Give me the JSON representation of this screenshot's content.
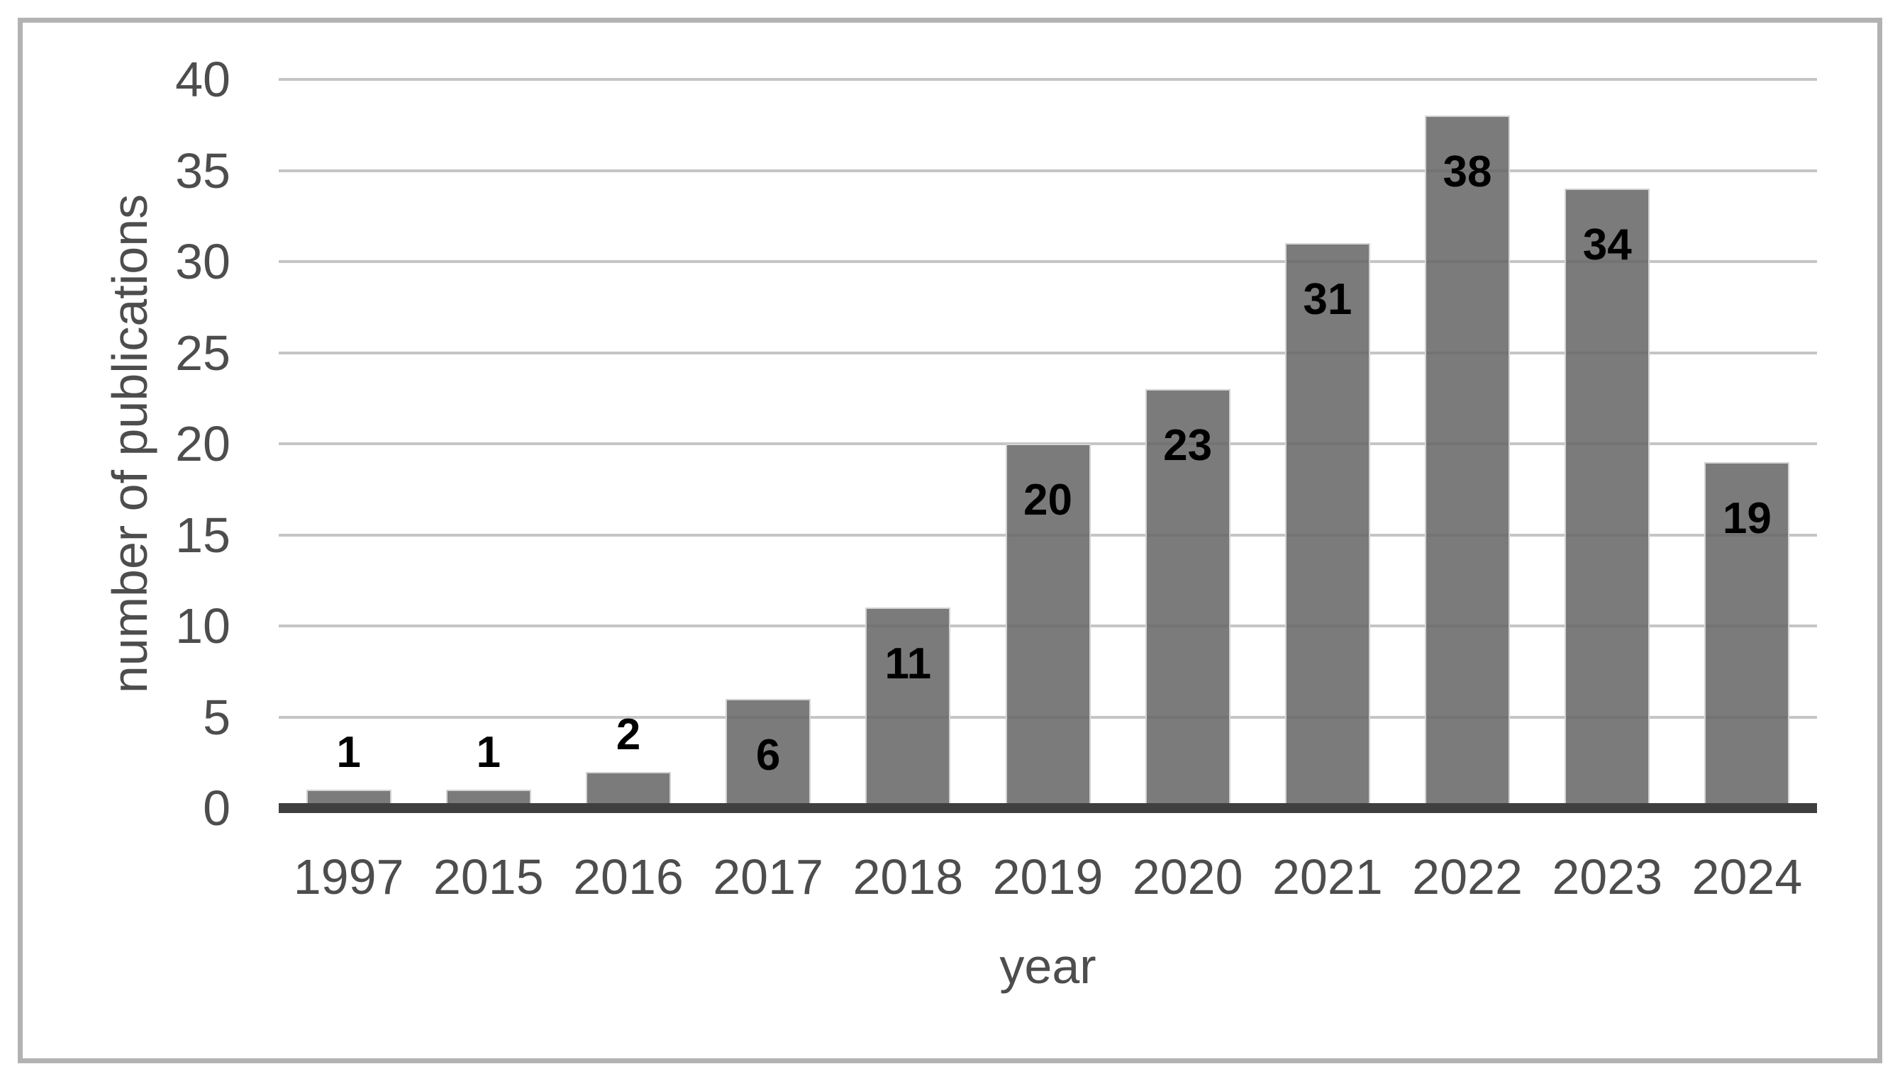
{
  "chart_data": {
    "type": "bar",
    "title": "",
    "xlabel": "year",
    "ylabel": "number of publications",
    "categories": [
      "1997",
      "2015",
      "2016",
      "2017",
      "2018",
      "2019",
      "2020",
      "2021",
      "2022",
      "2023",
      "2024"
    ],
    "values": [
      1,
      1,
      2,
      6,
      11,
      20,
      23,
      31,
      38,
      34,
      19
    ],
    "data_labels": [
      "1",
      "1",
      "2",
      "6",
      "11",
      "20",
      "23",
      "31",
      "38",
      "34",
      "19"
    ],
    "ylim": [
      0,
      40
    ],
    "yticks": [
      0,
      5,
      10,
      15,
      20,
      25,
      30,
      35,
      40
    ],
    "grid": "horizontal",
    "legend": "none",
    "colors": {
      "bar_fill": "#7b7b7b",
      "bar_border": "#d8d8d8",
      "gridline": "#c5c5c5",
      "axis_line": "#3f3f3f",
      "axis_text": "#4d4d4d",
      "data_label": "#000000",
      "frame_border": "#b2b2b2",
      "background": "#ffffff"
    }
  },
  "x_axis": {
    "title": "year"
  },
  "y_axis": {
    "title": "number of publications"
  }
}
